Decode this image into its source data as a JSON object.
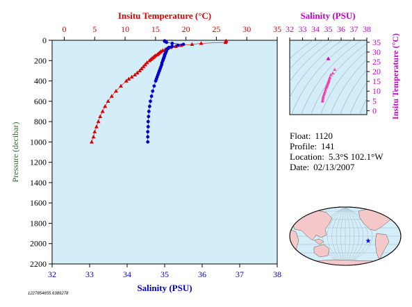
{
  "colors": {
    "temperature": "#dd0000",
    "salinity": "#0000cc",
    "inset": "#cc00cc",
    "inset_points": "#ee44aa",
    "plot_bg": "#d3eef8",
    "axis_label_green": "#336633",
    "land": "#f4c8c8",
    "ocean": "#d3eef8",
    "float_marker": "#0000ff"
  },
  "info": {
    "float_label": "Float:",
    "float_value": "1120",
    "profile_label": "Profile:",
    "profile_value": "141",
    "location_label": "Location:",
    "location_value": "5.3°S  102.1°W",
    "date_label": "Date:",
    "date_value": "02/13/2007"
  },
  "footer_id": "1227854655.6389278",
  "chart_data": [
    {
      "type": "scatter",
      "title_top": "Insitu Temperature (°C)",
      "xlabel_top": "Insitu Temperature (°C)",
      "xlabel_bottom": "Salinity (PSU)",
      "ylabel": "Pressure (decibar)",
      "temp_ticks": [
        "0",
        "5",
        "10",
        "15",
        "20",
        "25",
        "30",
        "35"
      ],
      "sal_ticks": [
        "32",
        "33",
        "34",
        "35",
        "36",
        "37",
        "38"
      ],
      "pressure_ticks": [
        "0",
        "200",
        "400",
        "600",
        "800",
        "1000",
        "1200",
        "1400",
        "1600",
        "1800",
        "2000",
        "2200"
      ],
      "temp_range": [
        -2,
        35
      ],
      "sal_range": [
        32,
        38
      ],
      "pressure_range": [
        0,
        2200
      ],
      "grid": false,
      "series": [
        {
          "name": "Insitu Temperature",
          "marker": "triangle",
          "pressure": [
            5,
            10,
            20,
            30,
            40,
            50,
            60,
            70,
            80,
            90,
            100,
            110,
            120,
            130,
            140,
            150,
            160,
            170,
            180,
            190,
            200,
            220,
            240,
            260,
            280,
            300,
            320,
            340,
            360,
            380,
            400,
            450,
            500,
            550,
            600,
            650,
            700,
            750,
            800,
            850,
            900,
            950,
            1000
          ],
          "temperature": [
            26.6,
            26.6,
            26.5,
            22.5,
            21.0,
            19.2,
            18.3,
            17.5,
            17.0,
            16.6,
            16.2,
            15.9,
            15.7,
            15.5,
            15.3,
            15.0,
            14.8,
            14.6,
            14.4,
            14.2,
            14.0,
            13.6,
            13.3,
            13.0,
            12.7,
            12.4,
            12.0,
            11.6,
            11.1,
            10.6,
            10.2,
            9.3,
            8.5,
            7.8,
            7.2,
            6.7,
            6.3,
            5.9,
            5.6,
            5.3,
            5.0,
            4.8,
            4.5
          ]
        },
        {
          "name": "Salinity",
          "marker": "circle",
          "pressure": [
            5,
            10,
            20,
            30,
            40,
            50,
            60,
            70,
            80,
            90,
            100,
            110,
            120,
            130,
            140,
            150,
            160,
            170,
            180,
            190,
            200,
            220,
            240,
            260,
            280,
            300,
            320,
            340,
            360,
            380,
            400,
            450,
            500,
            550,
            600,
            650,
            700,
            750,
            800,
            850,
            900,
            950,
            1000
          ],
          "salinity": [
            35.0,
            35.0,
            35.05,
            35.2,
            35.5,
            35.35,
            35.2,
            35.12,
            35.08,
            35.06,
            35.05,
            35.04,
            35.03,
            35.02,
            35.0,
            35.0,
            34.99,
            34.98,
            34.97,
            34.96,
            34.95,
            34.93,
            34.92,
            34.9,
            34.88,
            34.86,
            34.84,
            34.82,
            34.8,
            34.78,
            34.76,
            34.72,
            34.68,
            34.65,
            34.62,
            34.6,
            34.58,
            34.57,
            34.56,
            34.56,
            34.55,
            34.55,
            34.55
          ]
        }
      ]
    },
    {
      "type": "scatter",
      "title": "Salinity (PSU)",
      "xlabel": "Salinity (PSU)",
      "ylabel": "Insitu Temperature (°C)",
      "x_ticks": [
        "32",
        "33",
        "34",
        "35",
        "36",
        "37",
        "38"
      ],
      "y_ticks": [
        "0",
        "5",
        "10",
        "15",
        "20",
        "25",
        "30",
        "35"
      ],
      "x_range": [
        32,
        38
      ],
      "y_range": [
        -2,
        36
      ],
      "density_contours": true,
      "points_salinity": [
        35.5,
        35.35,
        35.2,
        35.12,
        35.08,
        35.05,
        35.02,
        35.0,
        34.97,
        34.95,
        34.92,
        34.9,
        34.86,
        34.82,
        34.78,
        34.74,
        34.7,
        34.66,
        34.62,
        34.6,
        34.58,
        34.56,
        34.55
      ],
      "points_temperature": [
        21.0,
        19.2,
        18.3,
        17.0,
        16.2,
        15.5,
        15.0,
        14.6,
        14.2,
        13.8,
        13.2,
        12.7,
        12.2,
        11.5,
        10.6,
        9.8,
        9.0,
        8.2,
        7.4,
        6.8,
        6.0,
        5.3,
        4.8
      ],
      "surface_point": {
        "salinity": 35.0,
        "temperature": 26.6
      }
    }
  ]
}
